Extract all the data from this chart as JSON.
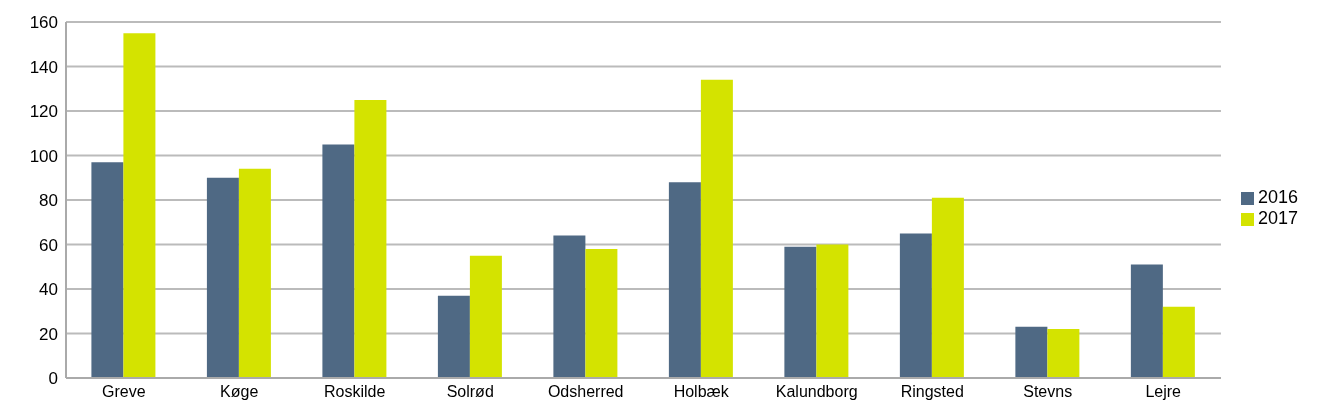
{
  "chart_data": {
    "type": "bar",
    "categories": [
      "Greve",
      "Køge",
      "Roskilde",
      "Solrød",
      "Odsherred",
      "Holbæk",
      "Kalundborg",
      "Ringsted",
      "Stevns",
      "Lejre"
    ],
    "series": [
      {
        "name": "2016",
        "color": "#4f6984",
        "values": [
          97,
          90,
          105,
          37,
          64,
          88,
          59,
          65,
          23,
          51
        ]
      },
      {
        "name": "2017",
        "color": "#d4e300",
        "values": [
          155,
          94,
          125,
          55,
          58,
          134,
          60,
          81,
          22,
          32
        ]
      }
    ],
    "ylim": [
      0,
      160
    ],
    "yticks": [
      0,
      20,
      40,
      60,
      80,
      100,
      120,
      140,
      160
    ],
    "grid": "y",
    "legend": "right"
  }
}
